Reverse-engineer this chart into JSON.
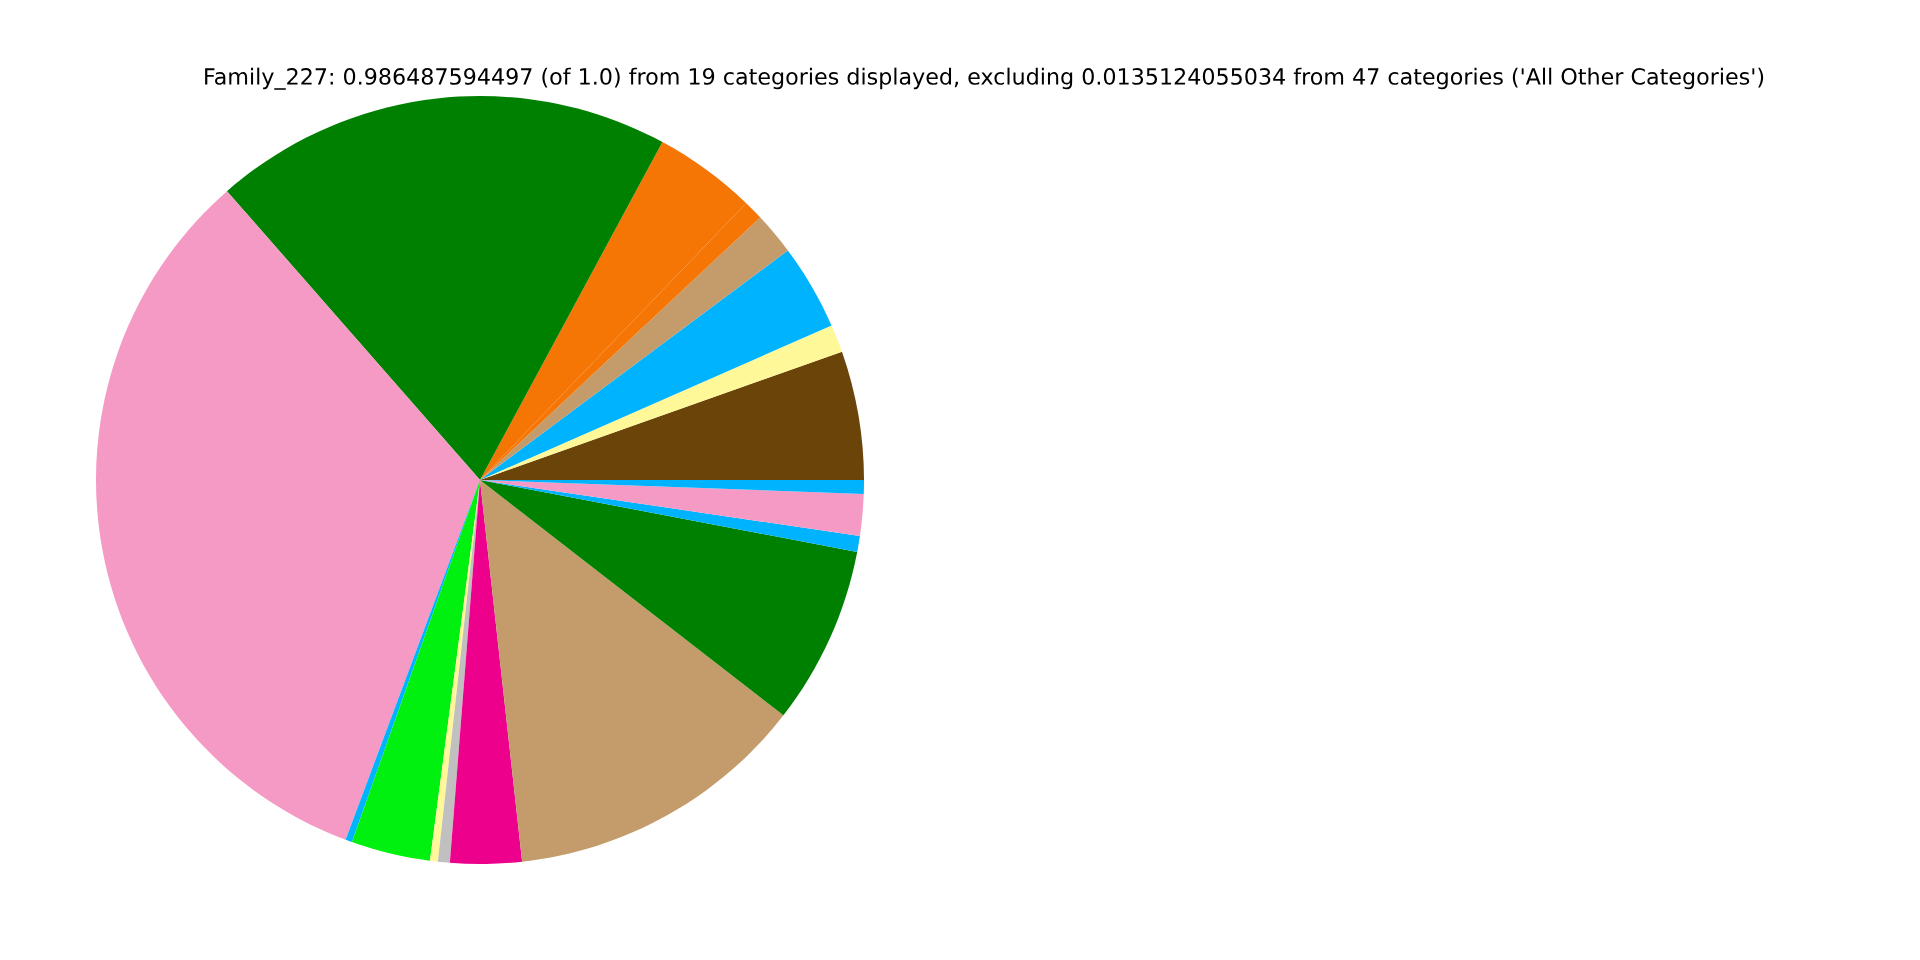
{
  "chart_data": {
    "type": "pie",
    "title": "Family_227: 0.986487594497 (of 1.0) from 19 categories displayed, excluding 0.0135124055034 from 47 categories ('All Other Categories')",
    "categories": [
      null,
      null,
      null,
      null,
      null,
      null,
      null,
      null,
      null,
      null,
      null,
      null,
      null,
      null,
      null,
      null,
      null,
      null
    ],
    "values": [
      5.42,
      1.17,
      3.61,
      1.78,
      0.83,
      4.31,
      19.33,
      32.86,
      0.28,
      3.33,
      0.33,
      0.5,
      3.0,
      12.75,
      7.5,
      0.67,
      1.75,
      0.58
    ],
    "colors": [
      "#6b4409",
      "#fff899",
      "#00b3ff",
      "#c49c6b",
      "#f57505",
      "#f57505",
      "#008000",
      "#f49ac4",
      "#00b3ff",
      "#00f010",
      "#fff899",
      "#c0c0c0",
      "#ec008c",
      "#c49c6b",
      "#008000",
      "#00b3ff",
      "#f49ac4",
      "#00b3ff"
    ],
    "legend": false
  }
}
